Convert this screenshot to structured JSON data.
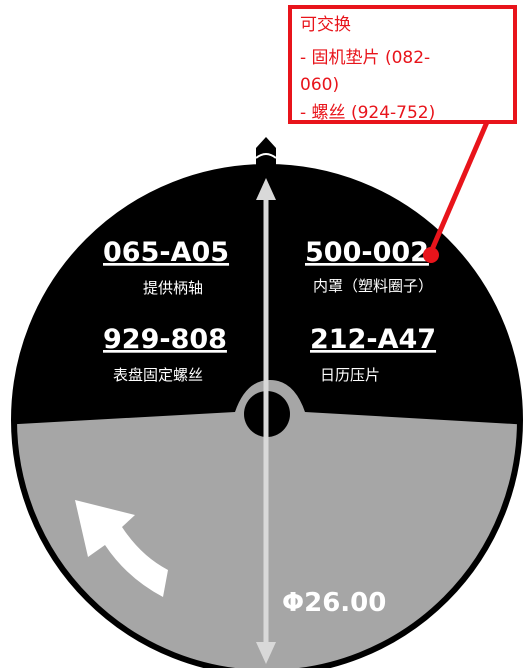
{
  "parts": [
    {
      "code": "065-A05",
      "desc": "提供柄轴"
    },
    {
      "code": "929-808",
      "desc": "表盘固定螺丝"
    },
    {
      "code": "500-002",
      "desc": "内罩（塑料圈子）"
    },
    {
      "code": "212-A47",
      "desc": "日历压片"
    }
  ],
  "dimension": {
    "label": "Φ26.00"
  },
  "callout": {
    "lines": [
      "可交换",
      "- 固机垫片 (082-",
      "060)",
      "- 螺丝 (924-752)"
    ]
  },
  "icons": {
    "crown": "crown-icon",
    "rotation": "rotation-arrow-icon"
  },
  "colors": {
    "dial_top": "#000000",
    "dial_bottom": "#a6a6a6",
    "dimension_line": "#d9d9d9",
    "callout": "#e8141b",
    "text": "#ffffff"
  }
}
